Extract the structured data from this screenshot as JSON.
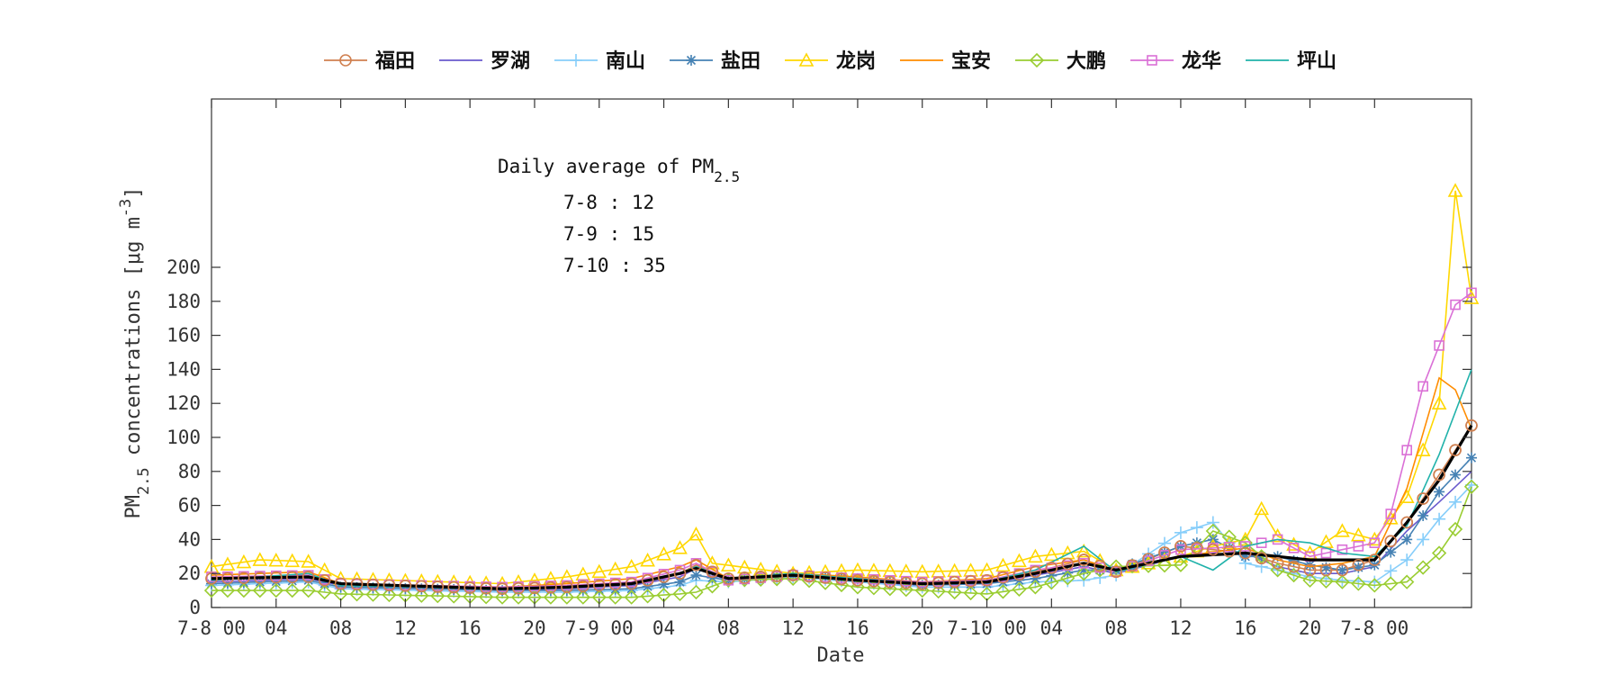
{
  "chart_data": {
    "type": "line",
    "xlabel": "Date",
    "ylabel": {
      "prefix": "PM",
      "sub": "2.5",
      "suffix": " concentrations [μg m",
      "sup": "-3",
      "tail": "]"
    },
    "ylim": [
      0,
      200
    ],
    "yticks": [
      0,
      20,
      40,
      60,
      80,
      100,
      120,
      140,
      160,
      180,
      200
    ],
    "xrange_hours": [
      0,
      78
    ],
    "xticks": [
      {
        "h": 0,
        "label": "7-8 00"
      },
      {
        "h": 4,
        "label": "04"
      },
      {
        "h": 8,
        "label": "08"
      },
      {
        "h": 12,
        "label": "12"
      },
      {
        "h": 16,
        "label": "16"
      },
      {
        "h": 20,
        "label": "20"
      },
      {
        "h": 24,
        "label": "7-9 00"
      },
      {
        "h": 28,
        "label": "04"
      },
      {
        "h": 32,
        "label": "08"
      },
      {
        "h": 36,
        "label": "12"
      },
      {
        "h": 40,
        "label": "16"
      },
      {
        "h": 44,
        "label": "20"
      },
      {
        "h": 48,
        "label": "7-10 00"
      },
      {
        "h": 52,
        "label": "04"
      },
      {
        "h": 56,
        "label": "08"
      },
      {
        "h": 60,
        "label": "12"
      },
      {
        "h": 64,
        "label": "16"
      },
      {
        "h": 68,
        "label": "20"
      },
      {
        "h": 72,
        "label": "7-8 00"
      }
    ],
    "grid": false,
    "legend_position": "top",
    "annotation": {
      "title_prefix": "Daily average of PM",
      "title_sub": "2.5",
      "lines": [
        "7-8 : 12",
        "7-9 : 15",
        "7-10 : 35"
      ]
    },
    "series": [
      {
        "name": "福田",
        "color": "#d08050",
        "marker": "circle",
        "keys": [
          [
            0,
            17
          ],
          [
            6,
            18
          ],
          [
            8,
            14
          ],
          [
            18,
            11
          ],
          [
            22,
            12
          ],
          [
            26,
            14
          ],
          [
            29,
            20
          ],
          [
            30,
            25
          ],
          [
            32,
            17
          ],
          [
            36,
            19
          ],
          [
            40,
            16
          ],
          [
            44,
            14
          ],
          [
            48,
            16
          ],
          [
            51,
            21
          ],
          [
            54,
            28
          ],
          [
            56,
            21
          ],
          [
            60,
            36
          ],
          [
            64,
            32
          ],
          [
            66,
            26
          ],
          [
            68,
            22
          ],
          [
            70,
            22
          ],
          [
            72,
            28
          ],
          [
            74,
            50
          ],
          [
            76,
            78
          ],
          [
            78,
            107
          ]
        ]
      },
      {
        "name": "罗湖",
        "color": "#6a5acd",
        "marker": "none",
        "keys": [
          [
            0,
            15
          ],
          [
            6,
            17
          ],
          [
            8,
            13
          ],
          [
            18,
            10
          ],
          [
            22,
            11
          ],
          [
            26,
            13
          ],
          [
            29,
            18
          ],
          [
            30,
            23
          ],
          [
            32,
            16
          ],
          [
            36,
            18
          ],
          [
            40,
            15
          ],
          [
            44,
            13
          ],
          [
            48,
            14
          ],
          [
            51,
            19
          ],
          [
            54,
            24
          ],
          [
            56,
            20
          ],
          [
            60,
            30
          ],
          [
            64,
            32
          ],
          [
            66,
            24
          ],
          [
            68,
            20
          ],
          [
            70,
            20
          ],
          [
            72,
            24
          ],
          [
            74,
            45
          ],
          [
            76,
            62
          ],
          [
            78,
            80
          ]
        ]
      },
      {
        "name": "南山",
        "color": "#87cefa",
        "marker": "plus",
        "keys": [
          [
            0,
            13
          ],
          [
            6,
            15
          ],
          [
            8,
            11
          ],
          [
            18,
            9
          ],
          [
            22,
            9
          ],
          [
            26,
            10
          ],
          [
            29,
            13
          ],
          [
            30,
            16
          ],
          [
            32,
            15
          ],
          [
            36,
            18
          ],
          [
            40,
            15
          ],
          [
            44,
            12
          ],
          [
            48,
            12
          ],
          [
            51,
            15
          ],
          [
            54,
            16
          ],
          [
            56,
            19
          ],
          [
            60,
            44
          ],
          [
            62,
            50
          ],
          [
            64,
            26
          ],
          [
            66,
            22
          ],
          [
            68,
            18
          ],
          [
            70,
            16
          ],
          [
            72,
            15
          ],
          [
            74,
            28
          ],
          [
            76,
            52
          ],
          [
            78,
            72
          ]
        ]
      },
      {
        "name": "盐田",
        "color": "#4682b4",
        "marker": "star",
        "keys": [
          [
            0,
            14
          ],
          [
            6,
            16
          ],
          [
            8,
            12
          ],
          [
            18,
            10
          ],
          [
            22,
            10
          ],
          [
            26,
            11
          ],
          [
            29,
            15
          ],
          [
            30,
            19
          ],
          [
            32,
            16
          ],
          [
            36,
            19
          ],
          [
            40,
            17
          ],
          [
            44,
            13
          ],
          [
            48,
            14
          ],
          [
            51,
            17
          ],
          [
            54,
            22
          ],
          [
            56,
            22
          ],
          [
            60,
            36
          ],
          [
            62,
            40
          ],
          [
            64,
            30
          ],
          [
            66,
            30
          ],
          [
            68,
            25
          ],
          [
            70,
            22
          ],
          [
            72,
            25
          ],
          [
            74,
            40
          ],
          [
            76,
            68
          ],
          [
            78,
            88
          ]
        ]
      },
      {
        "name": "龙岗",
        "color": "#ffd700",
        "marker": "triangle",
        "keys": [
          [
            0,
            24
          ],
          [
            3,
            28
          ],
          [
            6,
            27
          ],
          [
            8,
            17
          ],
          [
            18,
            14
          ],
          [
            22,
            18
          ],
          [
            26,
            24
          ],
          [
            29,
            35
          ],
          [
            30,
            43
          ],
          [
            31,
            26
          ],
          [
            36,
            20
          ],
          [
            40,
            22
          ],
          [
            44,
            21
          ],
          [
            48,
            22
          ],
          [
            51,
            30
          ],
          [
            54,
            33
          ],
          [
            56,
            22
          ],
          [
            60,
            30
          ],
          [
            62,
            36
          ],
          [
            64,
            40
          ],
          [
            65,
            58
          ],
          [
            66,
            42
          ],
          [
            68,
            32
          ],
          [
            70,
            45
          ],
          [
            72,
            40
          ],
          [
            74,
            65
          ],
          [
            76,
            120
          ],
          [
            77,
            245
          ],
          [
            78,
            182
          ]
        ]
      },
      {
        "name": "宝安",
        "color": "#ff8c00",
        "marker": "none",
        "keys": [
          [
            0,
            19
          ],
          [
            6,
            21
          ],
          [
            8,
            14
          ],
          [
            18,
            12
          ],
          [
            22,
            14
          ],
          [
            26,
            17
          ],
          [
            29,
            24
          ],
          [
            30,
            28
          ],
          [
            32,
            17
          ],
          [
            36,
            20
          ],
          [
            40,
            18
          ],
          [
            44,
            15
          ],
          [
            48,
            17
          ],
          [
            51,
            24
          ],
          [
            54,
            28
          ],
          [
            56,
            22
          ],
          [
            60,
            30
          ],
          [
            64,
            35
          ],
          [
            66,
            28
          ],
          [
            68,
            24
          ],
          [
            70,
            26
          ],
          [
            72,
            30
          ],
          [
            74,
            70
          ],
          [
            76,
            135
          ],
          [
            77,
            128
          ],
          [
            78,
            105
          ]
        ]
      },
      {
        "name": "大鹏",
        "color": "#9acd32",
        "marker": "diamond",
        "keys": [
          [
            0,
            10
          ],
          [
            6,
            10
          ],
          [
            8,
            8
          ],
          [
            18,
            6
          ],
          [
            22,
            6
          ],
          [
            26,
            6
          ],
          [
            29,
            8
          ],
          [
            30,
            9
          ],
          [
            32,
            16
          ],
          [
            36,
            17
          ],
          [
            40,
            12
          ],
          [
            44,
            10
          ],
          [
            48,
            8
          ],
          [
            51,
            12
          ],
          [
            54,
            20
          ],
          [
            56,
            24
          ],
          [
            60,
            25
          ],
          [
            62,
            45
          ],
          [
            64,
            38
          ],
          [
            66,
            22
          ],
          [
            68,
            16
          ],
          [
            70,
            15
          ],
          [
            72,
            13
          ],
          [
            74,
            15
          ],
          [
            76,
            32
          ],
          [
            77,
            46
          ],
          [
            78,
            71
          ]
        ]
      },
      {
        "name": "龙华",
        "color": "#da70d6",
        "marker": "square",
        "keys": [
          [
            0,
            18
          ],
          [
            6,
            19
          ],
          [
            8,
            14
          ],
          [
            18,
            12
          ],
          [
            22,
            13
          ],
          [
            26,
            15
          ],
          [
            29,
            22
          ],
          [
            30,
            26
          ],
          [
            32,
            16
          ],
          [
            36,
            19
          ],
          [
            40,
            17
          ],
          [
            44,
            15
          ],
          [
            48,
            16
          ],
          [
            51,
            22
          ],
          [
            54,
            26
          ],
          [
            56,
            21
          ],
          [
            60,
            34
          ],
          [
            64,
            36
          ],
          [
            66,
            40
          ],
          [
            68,
            30
          ],
          [
            70,
            34
          ],
          [
            72,
            38
          ],
          [
            73,
            55
          ],
          [
            75,
            130
          ],
          [
            77,
            178
          ],
          [
            78,
            185
          ]
        ]
      },
      {
        "name": "坪山",
        "color": "#20b2aa",
        "marker": "none",
        "keys": [
          [
            0,
            16
          ],
          [
            6,
            20
          ],
          [
            8,
            13
          ],
          [
            18,
            11
          ],
          [
            22,
            12
          ],
          [
            26,
            14
          ],
          [
            29,
            20
          ],
          [
            30,
            24
          ],
          [
            32,
            17
          ],
          [
            36,
            20
          ],
          [
            40,
            17
          ],
          [
            44,
            14
          ],
          [
            48,
            15
          ],
          [
            51,
            22
          ],
          [
            54,
            36
          ],
          [
            56,
            21
          ],
          [
            60,
            30
          ],
          [
            62,
            22
          ],
          [
            64,
            36
          ],
          [
            66,
            40
          ],
          [
            68,
            38
          ],
          [
            70,
            32
          ],
          [
            72,
            30
          ],
          [
            74,
            48
          ],
          [
            76,
            90
          ],
          [
            78,
            140
          ]
        ]
      }
    ],
    "mean_series": {
      "color": "#000000",
      "keys": [
        [
          0,
          17
        ],
        [
          6,
          18
        ],
        [
          8,
          14
        ],
        [
          18,
          11
        ],
        [
          22,
          12
        ],
        [
          26,
          14
        ],
        [
          29,
          20
        ],
        [
          30,
          23
        ],
        [
          32,
          17
        ],
        [
          36,
          19
        ],
        [
          40,
          16
        ],
        [
          44,
          14
        ],
        [
          48,
          15
        ],
        [
          51,
          20
        ],
        [
          54,
          26
        ],
        [
          56,
          22
        ],
        [
          60,
          30
        ],
        [
          64,
          32
        ],
        [
          66,
          30
        ],
        [
          68,
          28
        ],
        [
          70,
          28
        ],
        [
          72,
          28
        ],
        [
          74,
          50
        ],
        [
          76,
          75
        ],
        [
          78,
          107
        ]
      ]
    }
  }
}
